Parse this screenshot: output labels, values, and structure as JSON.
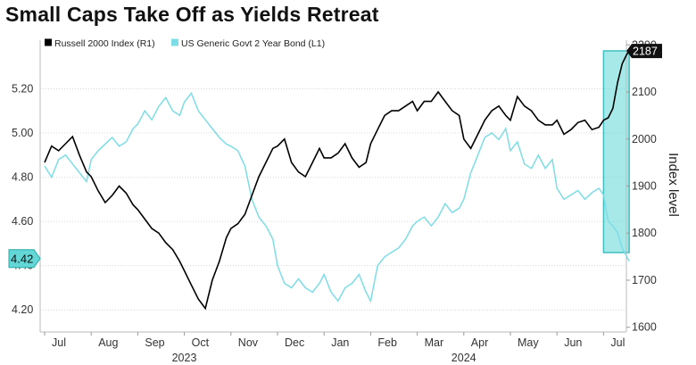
{
  "chart_data": {
    "type": "line",
    "title": "Small Caps Take Off as Yields Retreat",
    "legend": {
      "placement": "top-left",
      "entries": [
        {
          "name": "Russell 2000 Index (R1)",
          "color": "#000000"
        },
        {
          "name": "US Generic Govt 2 Year Bond (L1)",
          "color": "#7ddde6"
        }
      ]
    },
    "x_axis": {
      "months": [
        "Jul",
        "Aug",
        "Sep",
        "Oct",
        "Nov",
        "Dec",
        "Jan",
        "Feb",
        "Mar",
        "Apr",
        "May",
        "Jun",
        "Jul"
      ],
      "years": [
        "2023",
        "2024"
      ],
      "range_index": [
        0,
        12.6
      ]
    },
    "y_left": {
      "ticks": [
        "4.20",
        "4.40",
        "4.60",
        "4.80",
        "5.00",
        "5.20"
      ],
      "range": [
        4.1,
        5.42
      ],
      "last_value_label": "4.42",
      "label_color": "#63d7d6"
    },
    "y_right": {
      "label": "Index level",
      "ticks": [
        "1600",
        "1700",
        "1800",
        "1900",
        "2000",
        "2100",
        "2200"
      ],
      "range": [
        1590,
        2210
      ],
      "last_value_label": "2187",
      "label_color": "#111111"
    },
    "highlight": {
      "x_start": 12.0,
      "x_end": 12.55,
      "color": "#5fd6d5"
    },
    "series": [
      {
        "name": "Russell 2000 Index (R1)",
        "axis": "right",
        "color": "#000000",
        "x": [
          0,
          0.15,
          0.3,
          0.45,
          0.6,
          0.75,
          0.9,
          1.0,
          1.15,
          1.3,
          1.45,
          1.6,
          1.75,
          1.9,
          2.0,
          2.15,
          2.3,
          2.45,
          2.6,
          2.75,
          2.9,
          3.0,
          3.15,
          3.3,
          3.45,
          3.6,
          3.75,
          3.9,
          4.0,
          4.15,
          4.3,
          4.45,
          4.6,
          4.75,
          4.9,
          5.0,
          5.15,
          5.3,
          5.45,
          5.6,
          5.75,
          5.9,
          6.0,
          6.15,
          6.3,
          6.45,
          6.6,
          6.75,
          6.9,
          7.0,
          7.15,
          7.3,
          7.45,
          7.6,
          7.75,
          7.9,
          8.0,
          8.15,
          8.3,
          8.45,
          8.6,
          8.75,
          8.9,
          9.0,
          9.15,
          9.3,
          9.45,
          9.6,
          9.75,
          9.9,
          10.0,
          10.15,
          10.3,
          10.45,
          10.6,
          10.75,
          10.9,
          11.0,
          11.15,
          11.3,
          11.45,
          11.6,
          11.75,
          11.9,
          12.0,
          12.1,
          12.2,
          12.3,
          12.4,
          12.5,
          12.55
        ],
        "values": [
          1950,
          1985,
          1975,
          1990,
          2005,
          1965,
          1930,
          1920,
          1890,
          1865,
          1880,
          1900,
          1885,
          1860,
          1850,
          1830,
          1810,
          1800,
          1780,
          1765,
          1740,
          1720,
          1690,
          1660,
          1640,
          1700,
          1740,
          1790,
          1810,
          1820,
          1840,
          1880,
          1920,
          1950,
          1980,
          1985,
          2000,
          1950,
          1930,
          1920,
          1950,
          1980,
          1960,
          1960,
          1970,
          1990,
          1960,
          1940,
          1950,
          1990,
          2020,
          2050,
          2060,
          2060,
          2070,
          2080,
          2060,
          2080,
          2080,
          2100,
          2080,
          2060,
          2050,
          2000,
          1980,
          2010,
          2040,
          2060,
          2070,
          2050,
          2040,
          2090,
          2070,
          2060,
          2040,
          2030,
          2030,
          2040,
          2010,
          2020,
          2035,
          2040,
          2020,
          2025,
          2040,
          2045,
          2065,
          2120,
          2160,
          2180,
          2187
        ]
      },
      {
        "name": "US Generic Govt 2 Year Bond (L1)",
        "axis": "left",
        "color": "#7ddde6",
        "x": [
          0,
          0.15,
          0.3,
          0.45,
          0.6,
          0.75,
          0.9,
          1.0,
          1.15,
          1.3,
          1.45,
          1.6,
          1.75,
          1.9,
          2.0,
          2.15,
          2.3,
          2.45,
          2.6,
          2.75,
          2.9,
          3.0,
          3.15,
          3.3,
          3.45,
          3.6,
          3.75,
          3.9,
          4.0,
          4.15,
          4.3,
          4.45,
          4.6,
          4.75,
          4.9,
          5.0,
          5.15,
          5.3,
          5.45,
          5.6,
          5.75,
          5.9,
          6.0,
          6.15,
          6.3,
          6.45,
          6.6,
          6.75,
          6.9,
          7.0,
          7.15,
          7.3,
          7.45,
          7.6,
          7.75,
          7.9,
          8.0,
          8.15,
          8.3,
          8.45,
          8.6,
          8.75,
          8.9,
          9.0,
          9.15,
          9.3,
          9.45,
          9.6,
          9.75,
          9.9,
          10.0,
          10.15,
          10.3,
          10.45,
          10.6,
          10.75,
          10.9,
          11.0,
          11.15,
          11.3,
          11.45,
          11.6,
          11.75,
          11.9,
          12.0,
          12.1,
          12.2,
          12.3,
          12.4,
          12.5,
          12.55
        ],
        "values": [
          4.85,
          4.8,
          4.88,
          4.9,
          4.86,
          4.82,
          4.78,
          4.88,
          4.92,
          4.95,
          4.98,
          4.94,
          4.96,
          5.02,
          5.04,
          5.1,
          5.06,
          5.12,
          5.16,
          5.1,
          5.08,
          5.14,
          5.18,
          5.1,
          5.06,
          5.02,
          4.98,
          4.95,
          4.94,
          4.92,
          4.85,
          4.7,
          4.62,
          4.58,
          4.52,
          4.4,
          4.32,
          4.3,
          4.34,
          4.3,
          4.28,
          4.32,
          4.36,
          4.28,
          4.24,
          4.3,
          4.32,
          4.36,
          4.28,
          4.24,
          4.4,
          4.44,
          4.46,
          4.48,
          4.52,
          4.58,
          4.6,
          4.62,
          4.58,
          4.62,
          4.68,
          4.64,
          4.66,
          4.7,
          4.82,
          4.9,
          4.98,
          5.0,
          4.97,
          5.02,
          4.92,
          4.96,
          4.86,
          4.84,
          4.9,
          4.84,
          4.88,
          4.75,
          4.7,
          4.72,
          4.74,
          4.7,
          4.73,
          4.75,
          4.72,
          4.6,
          4.58,
          4.55,
          4.48,
          4.44,
          4.42
        ]
      }
    ]
  }
}
